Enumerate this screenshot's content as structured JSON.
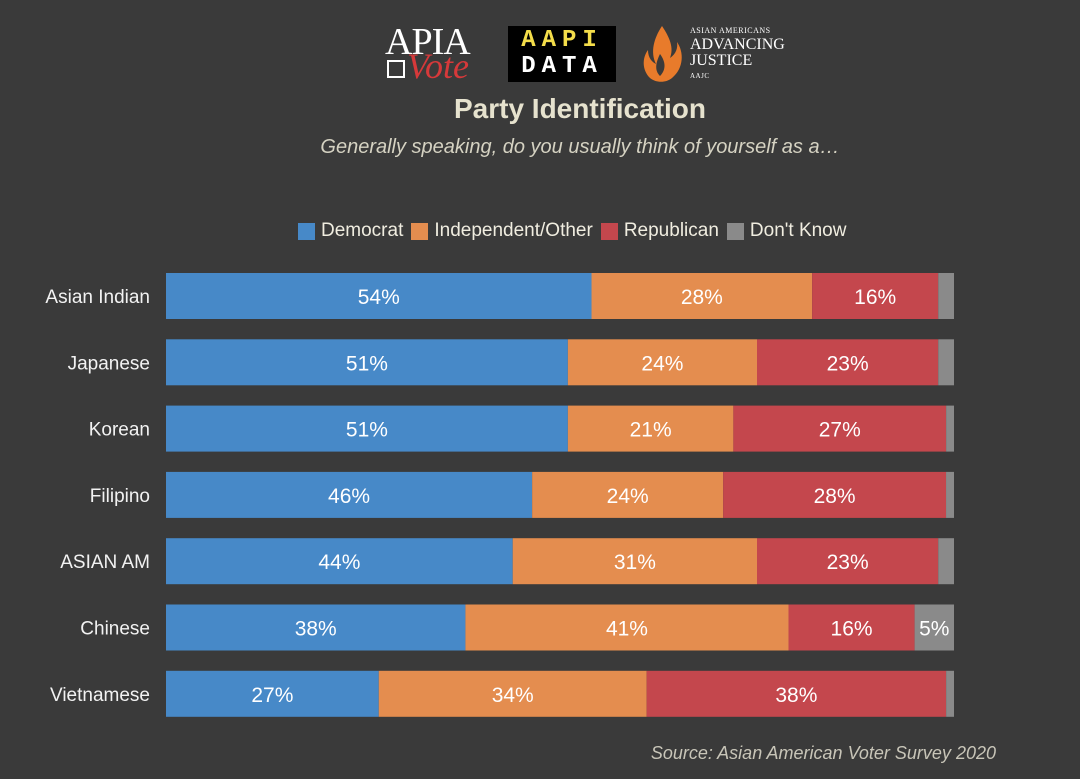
{
  "logos": {
    "apia_vote": {
      "top": "APIA",
      "bottom": "Vote"
    },
    "aapi_data": {
      "line1": "AAPI",
      "line2": "DATA"
    },
    "aajc": {
      "small": "ASIAN AMERICANS",
      "big1": "ADVANCING",
      "big2": "JUSTICE",
      "abbr": "AAJC"
    }
  },
  "source": "Source: Asian American Voter Survey 2020",
  "colors": {
    "background": "#3a3a3a",
    "democrat": "#4789c8",
    "independent": "#e48d4f",
    "republican": "#c4474d",
    "dont_know": "#8a8a8a"
  },
  "chart_data": {
    "type": "bar",
    "orientation": "horizontal",
    "stacked": true,
    "normalized": true,
    "title": "Party Identification",
    "subtitle": "Generally speaking, do you usually think of yourself as a…",
    "legend_position": "top",
    "categories": [
      "Asian Indian",
      "Japanese",
      "Korean",
      "Filipino",
      "ASIAN AM",
      "Chinese",
      "Vietnamese"
    ],
    "series": [
      {
        "name": "Democrat",
        "color": "#4789c8",
        "values": [
          54,
          51,
          51,
          46,
          44,
          38,
          27
        ],
        "labels": [
          "54%",
          "51%",
          "51%",
          "46%",
          "44%",
          "38%",
          "27%"
        ]
      },
      {
        "name": "Independent/Other",
        "color": "#e48d4f",
        "values": [
          28,
          24,
          21,
          24,
          31,
          41,
          34
        ],
        "labels": [
          "28%",
          "24%",
          "21%",
          "24%",
          "31%",
          "41%",
          "34%"
        ]
      },
      {
        "name": "Republican",
        "color": "#c4474d",
        "values": [
          16,
          23,
          27,
          28,
          23,
          16,
          38
        ],
        "labels": [
          "16%",
          "23%",
          "27%",
          "28%",
          "23%",
          "16%",
          "38%"
        ]
      },
      {
        "name": "Don't Know",
        "color": "#8a8a8a",
        "values": [
          2,
          2,
          1,
          1,
          2,
          5,
          1
        ],
        "labels": [
          "",
          "",
          "",
          "",
          "",
          "5%",
          ""
        ]
      }
    ]
  }
}
